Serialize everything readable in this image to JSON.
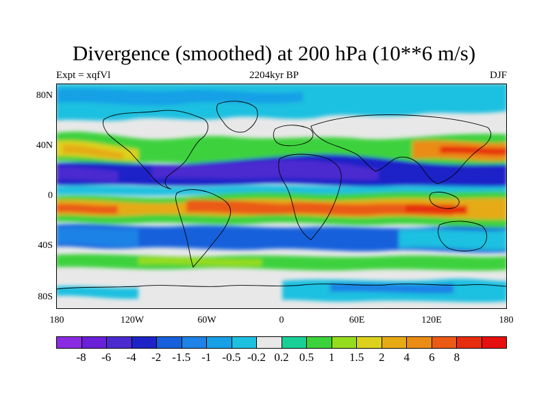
{
  "title": "Divergence (smoothed) at 200 hPa (10**6 m/s)",
  "subtitle_left": "Expt = xqfVl",
  "subtitle_center": "2204kyr BP",
  "subtitle_right": "DJF",
  "lat_labels": [
    "80N",
    "40N",
    "0",
    "40S",
    "80S"
  ],
  "lon_labels": [
    "180",
    "120W",
    "60W",
    "0",
    "60E",
    "120E",
    "180"
  ],
  "colorbar": {
    "colors": [
      "#8a2be2",
      "#6a1fd8",
      "#4b2bd0",
      "#1c24c8",
      "#1660dc",
      "#1e82e6",
      "#18a0e6",
      "#1ec0e0",
      "#e8e8e8",
      "#18d096",
      "#3cd23c",
      "#96dc1e",
      "#dcd21e",
      "#e6aa14",
      "#eb8c14",
      "#eb5a14",
      "#e62d0f",
      "#e60f0f"
    ],
    "labels": [
      "-8",
      "-6",
      "-4",
      "-2",
      "-1.5",
      "-1",
      "-0.5",
      "-0.2",
      "0.2",
      "0.5",
      "1",
      "1.5",
      "2",
      "4",
      "6",
      "8"
    ]
  },
  "map": {
    "ocean_color": "#e8e8e8",
    "coast_color": "#000000"
  }
}
